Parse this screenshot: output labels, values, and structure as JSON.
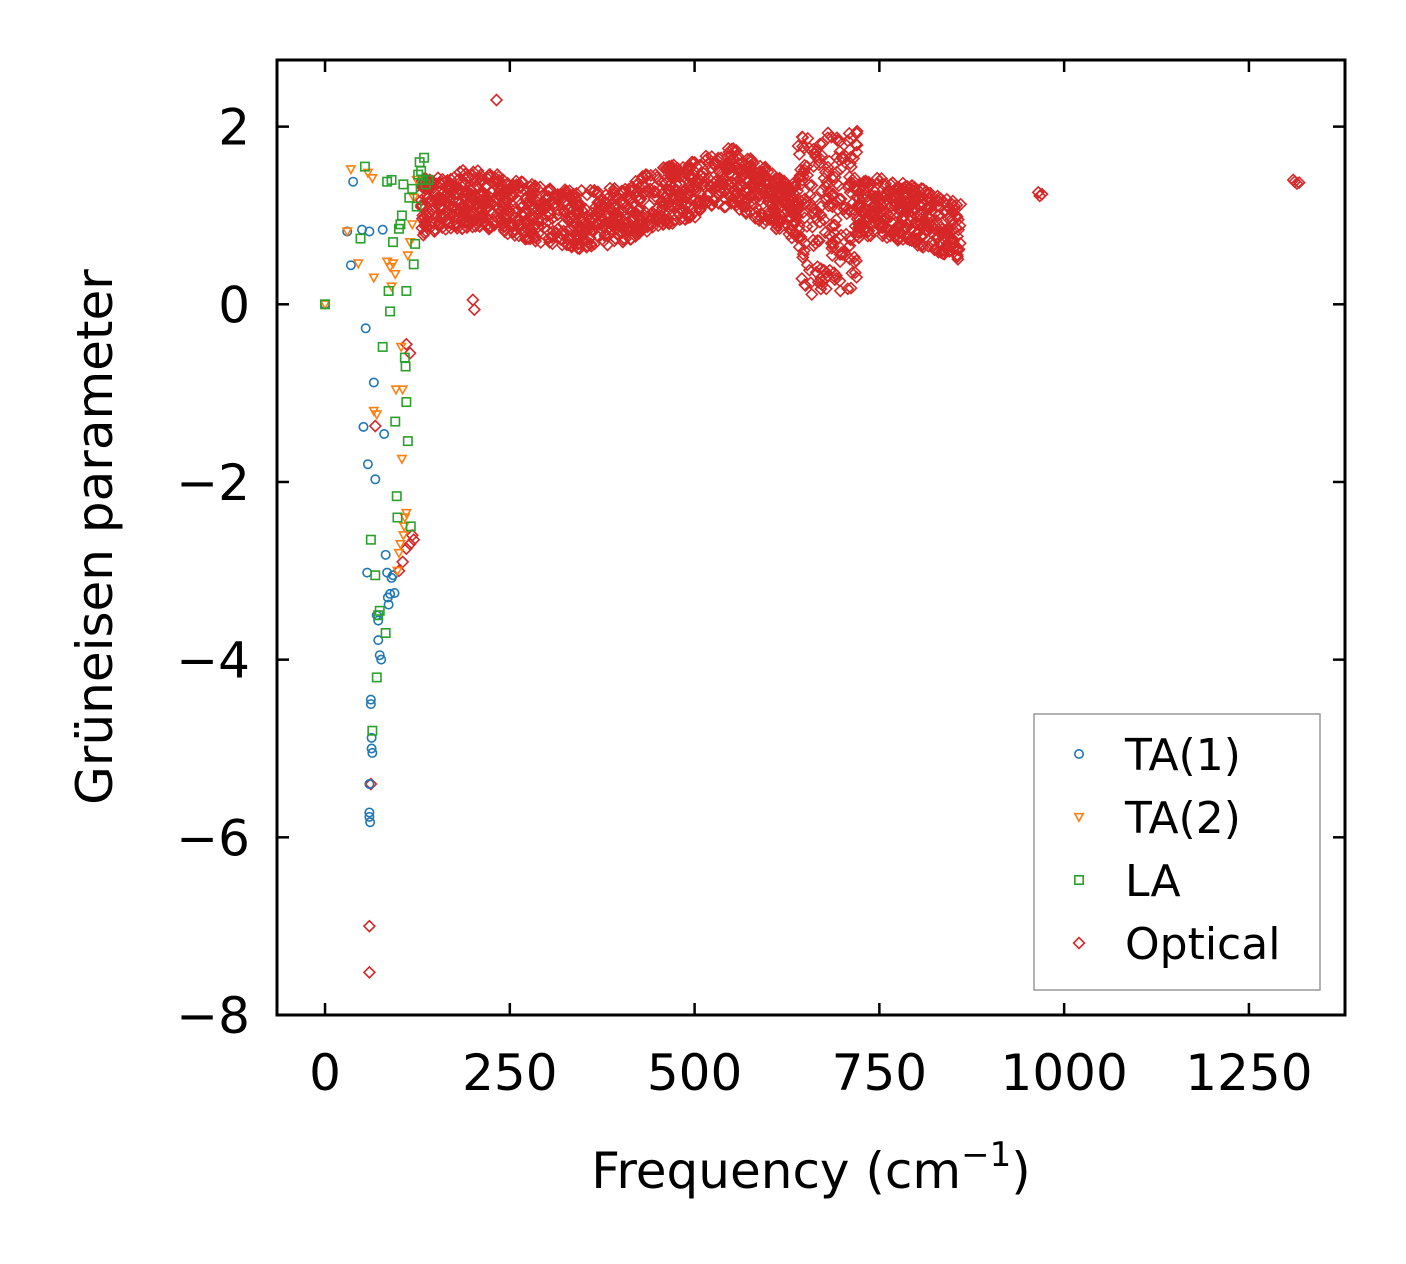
{
  "chart_data": {
    "type": "scatter",
    "title": "",
    "xlabel": "Frequency (cm",
    "xlabel_sup": "−1",
    "xlabel_close": ")",
    "ylabel": "Grüneisen parameter",
    "xlim": [
      -65,
      1380
    ],
    "ylim": [
      -8,
      2.75
    ],
    "xticks": [
      0,
      250,
      500,
      750,
      1000,
      1250
    ],
    "xtick_labels": [
      "0",
      "250",
      "500",
      "750",
      "1000",
      "1250"
    ],
    "yticks": [
      -8,
      -6,
      -4,
      -2,
      0,
      2
    ],
    "ytick_labels": [
      "−8",
      "−6",
      "−4",
      "−2",
      "0",
      "2"
    ],
    "grid": false,
    "legend_position": "bottom-right",
    "series": [
      {
        "name": "TA(1)",
        "marker": "circle",
        "color": "#1f77b4",
        "points": [
          [
            0,
            0
          ],
          [
            30,
            0.82
          ],
          [
            35,
            0.44
          ],
          [
            38,
            1.38
          ],
          [
            50,
            0.84
          ],
          [
            52,
            -1.38
          ],
          [
            55,
            -0.27
          ],
          [
            57,
            -3.02
          ],
          [
            58,
            -1.8
          ],
          [
            60,
            0.82
          ],
          [
            60,
            -5.4
          ],
          [
            60,
            -5.72
          ],
          [
            60,
            -5.77
          ],
          [
            61,
            -5.83
          ],
          [
            62,
            -4.45
          ],
          [
            62,
            -4.5
          ],
          [
            63,
            -4.88
          ],
          [
            63,
            -5.0
          ],
          [
            64,
            -5.05
          ],
          [
            66,
            -0.88
          ],
          [
            68,
            -1.97
          ],
          [
            70,
            -3.5
          ],
          [
            72,
            -3.56
          ],
          [
            72,
            -3.78
          ],
          [
            74,
            -3.95
          ],
          [
            76,
            -4.0
          ],
          [
            78,
            0.84
          ],
          [
            80,
            -1.46
          ],
          [
            82,
            -2.82
          ],
          [
            84,
            -3.02
          ],
          [
            85,
            -3.3
          ],
          [
            86,
            -3.38
          ],
          [
            88,
            -3.26
          ],
          [
            90,
            -3.08
          ],
          [
            92,
            -3.05
          ],
          [
            94,
            -3.25
          ]
        ]
      },
      {
        "name": "TA(2)",
        "marker": "triangle",
        "color": "#ff7f0e",
        "points": [
          [
            0,
            0
          ],
          [
            30,
            0.82
          ],
          [
            35,
            1.52
          ],
          [
            45,
            0.46
          ],
          [
            58,
            1.48
          ],
          [
            64,
            1.42
          ],
          [
            66,
            0.3
          ],
          [
            66,
            -1.2
          ],
          [
            70,
            -1.24
          ],
          [
            84,
            0.48
          ],
          [
            88,
            0.42
          ],
          [
            90,
            0.2
          ],
          [
            92,
            0.46
          ],
          [
            95,
            0.34
          ],
          [
            96,
            -0.96
          ],
          [
            98,
            -3.0
          ],
          [
            100,
            -2.8
          ],
          [
            102,
            -2.7
          ],
          [
            103,
            -0.48
          ],
          [
            104,
            -1.74
          ],
          [
            105,
            -0.96
          ],
          [
            106,
            -2.6
          ],
          [
            107,
            -2.5
          ],
          [
            108,
            -2.4
          ],
          [
            110,
            -2.35
          ],
          [
            112,
            0.55
          ],
          [
            115,
            0.7
          ],
          [
            118,
            0.9
          ],
          [
            120,
            1.2
          ],
          [
            124,
            1.4
          ]
        ]
      },
      {
        "name": "LA",
        "marker": "square",
        "color": "#2ca02c",
        "points": [
          [
            0,
            0
          ],
          [
            48,
            0.74
          ],
          [
            54,
            1.55
          ],
          [
            62,
            -2.65
          ],
          [
            64,
            -4.8
          ],
          [
            68,
            -3.05
          ],
          [
            70,
            -4.2
          ],
          [
            72,
            -3.5
          ],
          [
            74,
            -3.45
          ],
          [
            78,
            -0.48
          ],
          [
            82,
            -3.7
          ],
          [
            84,
            1.38
          ],
          [
            86,
            0.15
          ],
          [
            88,
            -0.08
          ],
          [
            90,
            1.4
          ],
          [
            92,
            0.7
          ],
          [
            95,
            -1.32
          ],
          [
            97,
            -2.16
          ],
          [
            98,
            -2.4
          ],
          [
            100,
            0.85
          ],
          [
            102,
            0.9
          ],
          [
            104,
            1.0
          ],
          [
            106,
            1.35
          ],
          [
            108,
            -0.6
          ],
          [
            109,
            -0.7
          ],
          [
            110,
            -1.1
          ],
          [
            110,
            0.15
          ],
          [
            112,
            -1.54
          ],
          [
            114,
            1.2
          ],
          [
            116,
            -2.5
          ],
          [
            118,
            1.3
          ],
          [
            120,
            0.45
          ],
          [
            122,
            0.68
          ],
          [
            124,
            1.1
          ],
          [
            126,
            1.46
          ],
          [
            128,
            1.6
          ],
          [
            130,
            1.5
          ],
          [
            132,
            1.4
          ],
          [
            134,
            1.65
          ],
          [
            136,
            1.35
          ],
          [
            140,
            1.4
          ]
        ]
      },
      {
        "name": "Optical",
        "marker": "diamond",
        "color": "#d62728",
        "points": [
          [
            60,
            -7.0
          ],
          [
            60,
            -7.52
          ],
          [
            62,
            -5.4
          ],
          [
            68,
            -1.37
          ],
          [
            110,
            -0.45
          ],
          [
            115,
            -0.55
          ],
          [
            100,
            -3.0
          ],
          [
            105,
            -2.9
          ],
          [
            110,
            -2.75
          ],
          [
            115,
            -2.7
          ],
          [
            118,
            -2.6
          ],
          [
            120,
            -2.65
          ],
          [
            200,
            0.05
          ],
          [
            202,
            -0.06
          ],
          [
            232,
            2.3
          ],
          [
            965,
            1.26
          ],
          [
            967,
            1.22
          ],
          [
            970,
            1.24
          ],
          [
            1310,
            1.4
          ],
          [
            1312,
            1.38
          ],
          [
            1315,
            1.36
          ],
          [
            1318,
            1.37
          ]
        ],
        "trend": [
          [
            130,
            1.1
          ],
          [
            200,
            1.2
          ],
          [
            250,
            1.1
          ],
          [
            300,
            1.0
          ],
          [
            350,
            0.95
          ],
          [
            400,
            1.0
          ],
          [
            450,
            1.2
          ],
          [
            500,
            1.3
          ],
          [
            550,
            1.45
          ],
          [
            600,
            1.2
          ],
          [
            650,
            1.0
          ],
          [
            700,
            1.05
          ],
          [
            750,
            1.1
          ],
          [
            800,
            1.0
          ],
          [
            860,
            0.8
          ]
        ]
      }
    ]
  }
}
